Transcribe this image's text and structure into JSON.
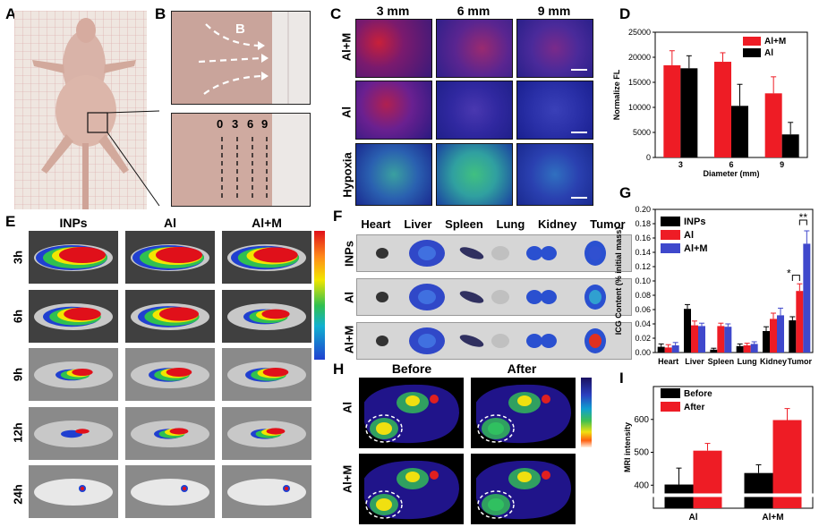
{
  "panels": {
    "A": {
      "label": "A"
    },
    "B": {
      "label": "B",
      "arrow_label": "B",
      "depths": [
        "0",
        "3",
        "6",
        "9"
      ]
    },
    "C": {
      "label": "C",
      "cols": [
        "3 mm",
        "6 mm",
        "9 mm"
      ],
      "rows": [
        "Al+M",
        "Al",
        "Hypoxia"
      ]
    },
    "D": {
      "label": "D"
    },
    "E": {
      "label": "E",
      "cols": [
        "INPs",
        "Al",
        "Al+M"
      ],
      "rows": [
        "3h",
        "6h",
        "9h",
        "12h",
        "24h"
      ]
    },
    "F": {
      "label": "F",
      "cols": [
        "Heart",
        "Liver",
        "Spleen",
        "Lung",
        "Kidney",
        "Tumor"
      ],
      "rows": [
        "INPs",
        "Al",
        "Al+M"
      ]
    },
    "G": {
      "label": "G"
    },
    "H": {
      "label": "H",
      "cols": [
        "Before",
        "After"
      ],
      "rows": [
        "Al",
        "Al+M"
      ]
    },
    "I": {
      "label": "I"
    }
  },
  "colors": {
    "red": "#ee1c25",
    "black": "#000000",
    "blue": "#3f48cc"
  },
  "chart_data": [
    {
      "id": "D",
      "type": "bar",
      "categories": [
        "3",
        "6",
        "9"
      ],
      "series": [
        {
          "name": "Al+M",
          "values": [
            18400,
            19100,
            12800
          ],
          "errors": [
            2900,
            1800,
            3300
          ],
          "color": "#ee1c25"
        },
        {
          "name": "Al",
          "values": [
            17800,
            10300,
            4600
          ],
          "errors": [
            2500,
            4300,
            2400
          ],
          "color": "#000000"
        }
      ],
      "xlabel": "Diameter (mm)",
      "ylabel": "Normalize FL",
      "ylim": [
        0,
        25000
      ],
      "yticks": [
        "0",
        "5000",
        "10000",
        "15000",
        "20000",
        "25000"
      ],
      "legend": "top-right"
    },
    {
      "id": "G",
      "type": "bar",
      "categories": [
        "Heart",
        "Liver",
        "Spleen",
        "Lung",
        "Kidney",
        "Tumor"
      ],
      "series": [
        {
          "name": "INPs",
          "values": [
            0.008,
            0.061,
            0.004,
            0.009,
            0.03,
            0.045
          ],
          "errors": [
            0.004,
            0.006,
            0.002,
            0.003,
            0.006,
            0.005
          ],
          "color": "#000000"
        },
        {
          "name": "Al",
          "values": [
            0.007,
            0.038,
            0.037,
            0.01,
            0.047,
            0.086
          ],
          "errors": [
            0.004,
            0.006,
            0.004,
            0.003,
            0.008,
            0.01
          ],
          "color": "#ee1c25"
        },
        {
          "name": "Al+M",
          "values": [
            0.01,
            0.037,
            0.036,
            0.012,
            0.052,
            0.152
          ],
          "errors": [
            0.004,
            0.004,
            0.004,
            0.003,
            0.01,
            0.018
          ],
          "color": "#3f48cc"
        }
      ],
      "ylabel": "ICG Content (% initial mass)",
      "ylim": [
        0,
        0.2
      ],
      "yticks": [
        "0.00",
        "0.02",
        "0.04",
        "0.06",
        "0.08",
        "0.10",
        "0.12",
        "0.14",
        "0.16",
        "0.18",
        "0.20"
      ],
      "annotations": [
        "*",
        "**"
      ],
      "legend": "top-left"
    },
    {
      "id": "I",
      "type": "bar",
      "categories": [
        "Al",
        "Al+M"
      ],
      "series": [
        {
          "name": "Before",
          "values": [
            402,
            437
          ],
          "errors": [
            50,
            25
          ],
          "color": "#000000"
        },
        {
          "name": "After",
          "values": [
            505,
            598
          ],
          "errors": [
            22,
            35
          ],
          "color": "#ee1c25"
        }
      ],
      "ylabel": "MRI intensity",
      "ylim": [
        330,
        700
      ],
      "yticks": [
        "400",
        "500",
        "600"
      ],
      "legend": "top-left"
    }
  ]
}
